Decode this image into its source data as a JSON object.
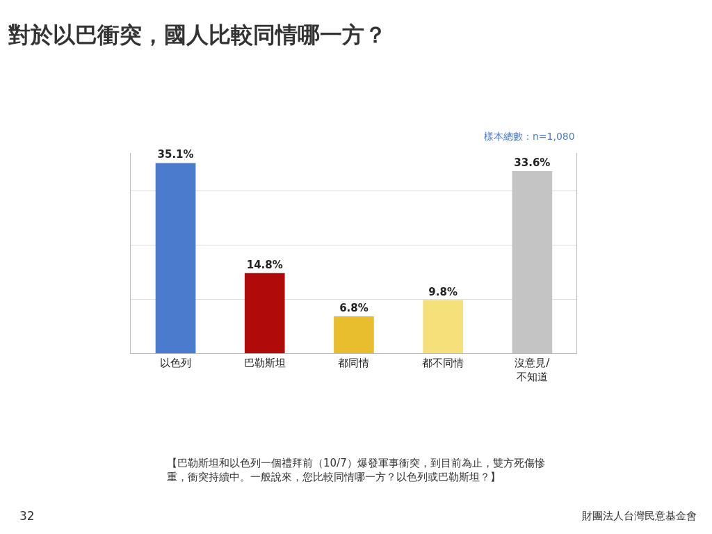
{
  "chart_data": {
    "type": "bar",
    "title": "對於以巴衝突，國人比較同情哪一方？",
    "categories": [
      "以色列",
      "巴勒斯坦",
      "都同情",
      "都不同情",
      "沒意見/不知道"
    ],
    "values": [
      35.1,
      14.8,
      6.8,
      9.8,
      33.6
    ],
    "colors": [
      "#4a7bcc",
      "#b00a0a",
      "#e8bd2e",
      "#f5e07a",
      "#c4c4c4"
    ],
    "value_labels": [
      "35.1%",
      "14.8%",
      "6.8%",
      "9.8%",
      "33.6%"
    ],
    "grid": "y",
    "tick_labels": "x",
    "annotations": [
      "樣本總數：n=1,080",
      "【巴勒斯坦和以色列一個禮拜前（10/7）爆發軍事衝突，到目前為止，雙方死傷慘重，衝突持續中。一般說來，您比較同情哪一方？以色列或巴勒斯坦？】",
      "32",
      "財團法人台灣民意基金會"
    ]
  }
}
